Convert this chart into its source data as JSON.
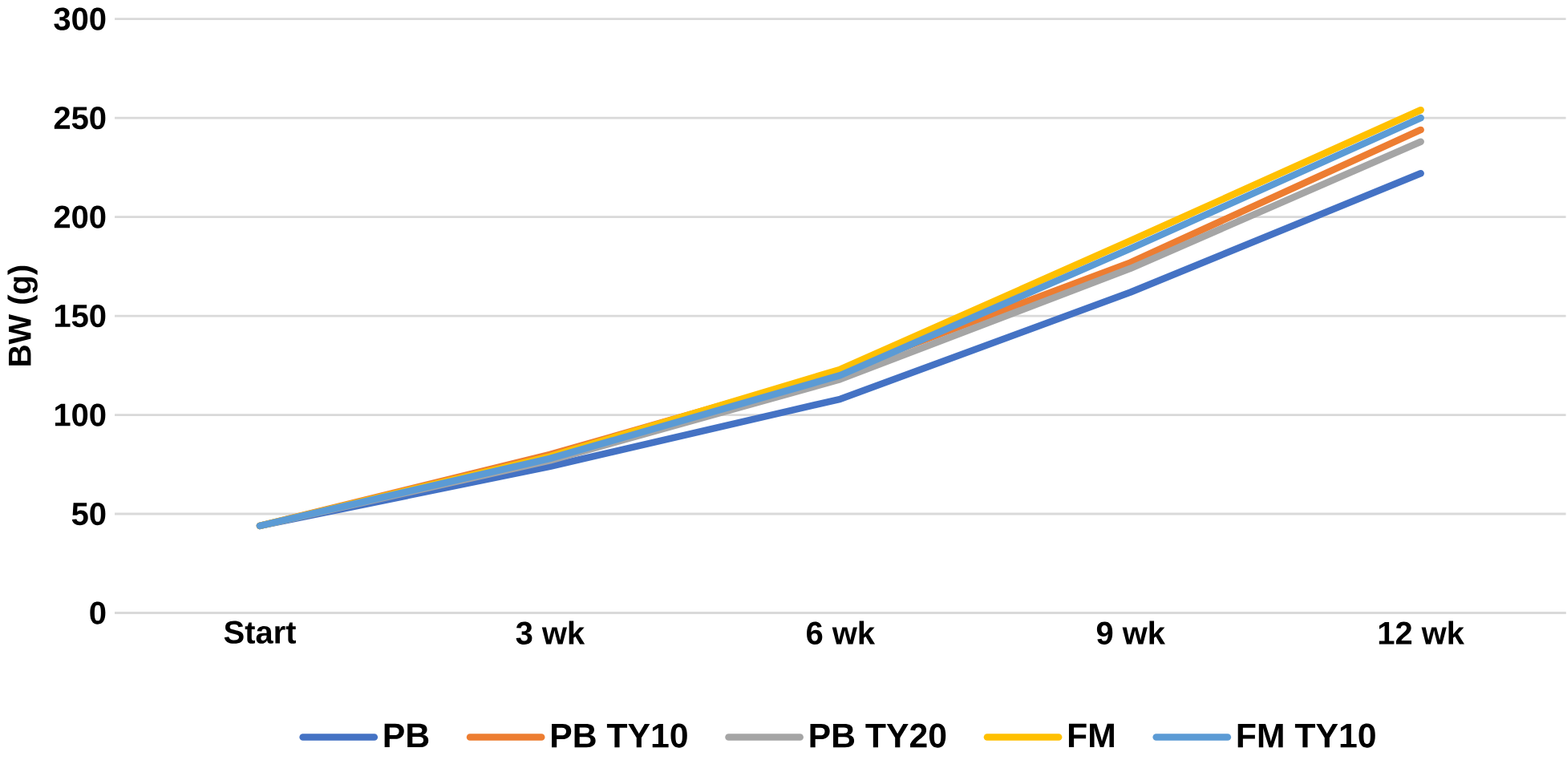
{
  "chart_data": {
    "type": "line",
    "ylabel": "BW (g)",
    "categories": [
      "Start",
      "3 wk",
      "6 wk",
      "9 wk",
      "12 wk"
    ],
    "series": [
      {
        "name": "PB",
        "color": "#4472c4",
        "values": [
          44,
          74,
          108,
          162,
          222
        ]
      },
      {
        "name": "PB TY10",
        "color": "#ed7d31",
        "values": [
          44,
          80,
          122,
          177,
          244
        ]
      },
      {
        "name": "PB TY20",
        "color": "#a5a5a5",
        "values": [
          44,
          77,
          118,
          174,
          238
        ]
      },
      {
        "name": "FM",
        "color": "#ffc000",
        "values": [
          44,
          79,
          123,
          188,
          254
        ]
      },
      {
        "name": "FM TY10",
        "color": "#5b9bd5",
        "values": [
          44,
          78,
          120,
          184,
          250
        ]
      }
    ],
    "ylim": [
      0,
      300
    ],
    "yticks": [
      0,
      50,
      100,
      150,
      200,
      250,
      300
    ],
    "grid": "y",
    "legend": "bottom",
    "line_style": "solid"
  }
}
